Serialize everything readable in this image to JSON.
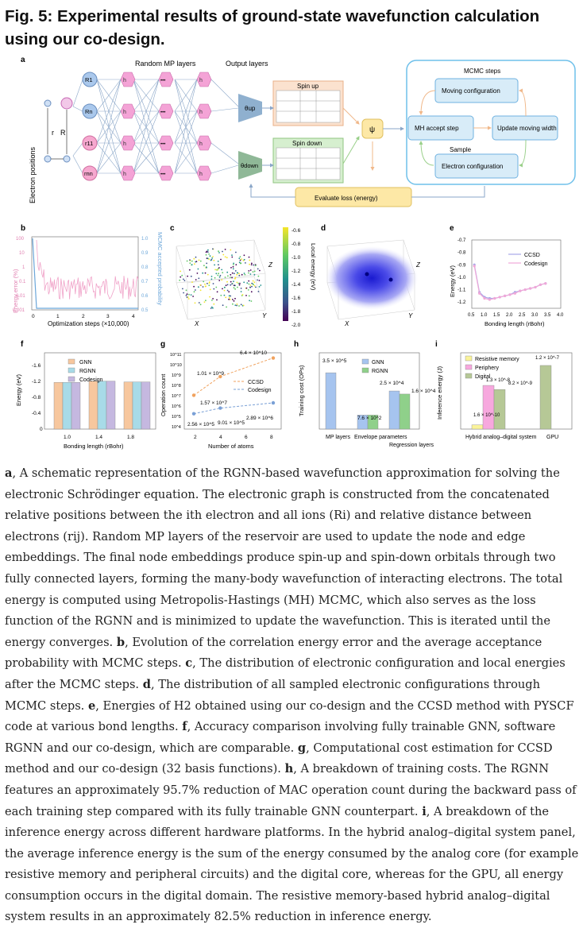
{
  "title": "Fig. 5: Experimental results of ground-state wavefunction calculation using our co-design.",
  "panels": {
    "a": {
      "letter": "a",
      "electron_positions": "Electron positions",
      "r": "r",
      "R": "R",
      "random_mp_layers": "Random MP layers",
      "output_layers": "Output layers",
      "nodes": [
        "R1",
        "Rn",
        "r11",
        "rnn"
      ],
      "spin_up": "Spin up",
      "spin_down": "Spin down",
      "theta_up": "θup",
      "theta_down": "θdown",
      "psi": "ψ",
      "mcmc_steps": "MCMC steps",
      "moving_configuration": "Moving configuration",
      "mh_accept_step": "MH accept step",
      "update_moving_width": "Update moving width",
      "sample": "Sample",
      "electron_configuration": "Electron configuration",
      "evaluate_loss": "Evaluate loss (energy)",
      "ellipsis": "•••"
    },
    "b": {
      "letter": "b",
      "ylabel": "Energy error (%)",
      "ylabel_right": "MCMC accepted probability",
      "xlabel": "Optimization steps (×10,000)",
      "yticks": [
        "100",
        "10",
        "1",
        "0.1",
        "0.01",
        "0.001"
      ],
      "yticks_right": [
        "1.0",
        "0.9",
        "0.8",
        "0.7",
        "0.6",
        "0.5"
      ],
      "xticks": [
        "0",
        "1",
        "2",
        "3",
        "4"
      ]
    },
    "c": {
      "letter": "c",
      "colorbar_label": "Local energy (eV)",
      "colorbar_ticks": [
        "-0.6",
        "-0.8",
        "-1.0",
        "-1.2",
        "-1.4",
        "-1.6",
        "-1.8",
        "-2.0"
      ],
      "x": "X",
      "y": "Y",
      "z": "Z"
    },
    "d": {
      "letter": "d",
      "x": "X",
      "y": "Y",
      "z": "Z"
    },
    "e": {
      "letter": "e",
      "ylabel": "Energy (eV)",
      "xlabel": "Bonding length (rBohr)",
      "legend": [
        "CCSD",
        "Codesign"
      ]
    },
    "f": {
      "letter": "f",
      "ylabel": "Energy (eV)",
      "xlabel": "Bonding length (rBohr)",
      "legend": [
        "GNN",
        "RGNN",
        "Codesign"
      ],
      "yticks": [
        "-1.6",
        "-1.2",
        "-0.8",
        "-0.4",
        "0"
      ],
      "xticks": [
        "1.0",
        "1.4",
        "1.8"
      ]
    },
    "g": {
      "letter": "g",
      "ylabel": "Operation count",
      "xlabel": "Number of atoms",
      "legend": [
        "CCSD",
        "Codesign"
      ],
      "xticks": [
        "2",
        "4",
        "6",
        "8"
      ],
      "yticks": [
        "10^11",
        "10^10",
        "10^9",
        "10^8",
        "10^7",
        "10^6",
        "10^5",
        "10^4"
      ],
      "annotations": [
        "6.4 × 10^10",
        "1.01 × 10^9",
        "1.57 × 10^7",
        "9.01 × 10^5",
        "2.89 × 10^6",
        "2.56 × 10^5"
      ]
    },
    "h": {
      "letter": "h",
      "ylabel": "Training cost (OPs)",
      "legend": [
        "GNN",
        "RGNN"
      ],
      "categories": [
        "MP layers",
        "Envelope parameters",
        "Regression layers"
      ],
      "annotations": [
        "3.5 × 10^5",
        "7.6 × 10^2",
        "2.5 × 10^4",
        "1.6 × 10^4"
      ]
    },
    "i": {
      "letter": "i",
      "ylabel": "Inference energy (J)",
      "legend": [
        "Resistive memory",
        "Periphery",
        "Digital"
      ],
      "categories": [
        "Hybrid analog–digital system",
        "GPU"
      ],
      "annotations": [
        "1.2 × 10^-7",
        "1.3 × 10^-8",
        "8.2 × 10^-9",
        "1.6 × 10^-10"
      ]
    }
  },
  "chart_data": [
    {
      "panel": "e",
      "type": "line",
      "xlabel": "Bonding length (rBohr)",
      "ylabel": "Energy (eV)",
      "xlim": [
        0.5,
        4.0
      ],
      "ylim": [
        -1.25,
        -0.7
      ],
      "xticks": [
        "0.5",
        "1.0",
        "1.5",
        "2.0",
        "2.5",
        "3.0",
        "3.5",
        "4.0"
      ],
      "yticks": [
        "-0.7",
        "-0.8",
        "-0.9",
        "-1.0",
        "-1.1",
        "-1.2"
      ],
      "x": [
        0.6,
        0.8,
        1.0,
        1.2,
        1.4,
        1.6,
        1.8,
        2.0,
        2.2,
        2.4,
        2.6,
        2.8,
        3.0,
        3.2,
        3.4
      ],
      "series": [
        {
          "name": "CCSD",
          "values": [
            -0.9,
            -1.12,
            -1.16,
            -1.17,
            -1.17,
            -1.16,
            -1.15,
            -1.14,
            -1.12,
            -1.11,
            -1.1,
            -1.09,
            -1.08,
            -1.06,
            -1.05
          ]
        },
        {
          "name": "Codesign",
          "values": [
            -0.91,
            -1.13,
            -1.17,
            -1.18,
            -1.17,
            -1.16,
            -1.15,
            -1.14,
            -1.13,
            -1.11,
            -1.1,
            -1.09,
            -1.08,
            -1.06,
            -1.05
          ]
        }
      ]
    },
    {
      "panel": "f",
      "type": "bar",
      "categories": [
        "1.0",
        "1.4",
        "1.8"
      ],
      "ylim": [
        0,
        -1.6
      ],
      "series": [
        {
          "name": "GNN",
          "values": [
            -1.14,
            -1.17,
            -1.15
          ]
        },
        {
          "name": "RGNN",
          "values": [
            -1.14,
            -1.17,
            -1.15
          ]
        },
        {
          "name": "Codesign",
          "values": [
            -1.14,
            -1.17,
            -1.15
          ]
        }
      ]
    },
    {
      "panel": "g",
      "type": "line",
      "x": [
        2,
        4,
        8
      ],
      "series": [
        {
          "name": "CCSD",
          "values": [
            15700000.0,
            1010000000.0,
            64000000000.0
          ]
        },
        {
          "name": "Codesign",
          "values": [
            256000.0,
            901000.0,
            2890000.0
          ]
        }
      ]
    },
    {
      "panel": "h",
      "type": "bar",
      "categories": [
        "MP layers",
        "Envelope parameters",
        "Regression layers"
      ],
      "series": [
        {
          "name": "GNN",
          "values": [
            350000.0,
            760,
            25000.0
          ]
        },
        {
          "name": "RGNN",
          "values": [
            null,
            760,
            16000.0
          ]
        }
      ]
    },
    {
      "panel": "i",
      "type": "bar",
      "categories": [
        "Hybrid analog–digital system",
        "GPU"
      ],
      "series": [
        {
          "name": "Resistive memory",
          "values": [
            1.6e-10,
            null
          ]
        },
        {
          "name": "Periphery",
          "values": [
            1.3e-08,
            null
          ]
        },
        {
          "name": "Digital",
          "values": [
            8.2e-09,
            1.2e-07
          ]
        }
      ]
    }
  ],
  "caption": {
    "a_label": "a",
    "a_text": ", A schematic representation of the RGNN-based wavefunction approximation for solving the electronic Schrödinger equation. The electronic graph is constructed from the concatenated relative positions between the ith electron and all ions (Ri) and relative distance between electrons (rij). Random MP layers of the reservoir are used to update the node and edge embeddings. The final node embeddings produce spin-up and spin-down orbitals through two fully connected layers, forming the many-body wavefunction of interacting electrons. The total energy is computed using Metropolis-Hastings (MH) MCMC, which also serves as the loss function of the RGNN and is minimized to update the wavefunction. This is iterated until the energy converges. ",
    "b_label": "b",
    "b_text": ", Evolution of the correlation energy error and the average acceptance probability with MCMC steps. ",
    "c_label": "c",
    "c_text": ", The distribution of electronic configuration and local energies after the MCMC steps. ",
    "d_label": "d",
    "d_text": ", The distribution of all sampled electronic configurations through MCMC steps. ",
    "e_label": "e",
    "e_text": ", Energies of H2 obtained using our co-design and the CCSD method with PYSCF code at various bond lengths. ",
    "f_label": "f",
    "f_text": ", Accuracy comparison involving fully trainable GNN, software RGNN and our co-design, which are comparable. ",
    "g_label": "g",
    "g_text": ", Computational cost estimation for CCSD method and our co-design (32 basis functions). ",
    "h_label": "h",
    "h_text": ", A breakdown of training costs. The RGNN features an approximately 95.7% reduction of MAC operation count during the backward pass of each training step compared with its fully trainable GNN counterpart. ",
    "i_label": "i",
    "i_text": ", A breakdown of the inference energy across different hardware platforms. In the hybrid analog–digital system panel, the average inference energy is the sum of the energy consumed by the analog core (for example resistive memory and peripheral circuits) and the digital core, whereas for the GPU, all energy consumption occurs in the digital domain. The resistive memory-based hybrid analog–digital system results in an approximately 82.5% reduction in inference energy."
  }
}
